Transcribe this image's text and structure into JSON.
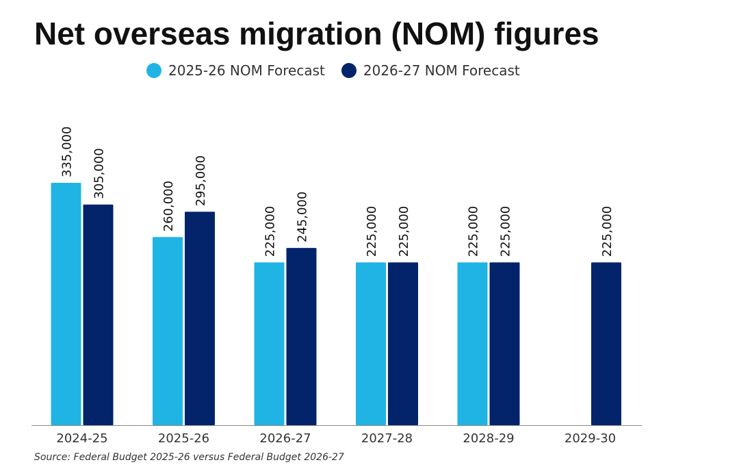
{
  "chart_data": {
    "type": "bar",
    "title": "Net overseas migration (NOM) figures",
    "xlabel": "",
    "ylabel": "",
    "categories": [
      "2024-25",
      "2025-26",
      "2026-27",
      "2027-28",
      "2028-29",
      "2029-30"
    ],
    "series": [
      {
        "name": "2025-26 NOM Forecast",
        "color": "#20B4E4",
        "values": [
          335000,
          260000,
          225000,
          225000,
          225000,
          null
        ],
        "labels": [
          "335,000",
          "260,000",
          "225,000",
          "225,000",
          "225,000",
          null
        ]
      },
      {
        "name": "2026-27 NOM Forecast",
        "color": "#03246B",
        "values": [
          305000,
          295000,
          245000,
          225000,
          225000,
          225000
        ],
        "labels": [
          "305,000",
          "295,000",
          "245,000",
          "225,000",
          "225,000",
          "225,000"
        ]
      }
    ],
    "ylim": [
      0,
      335000
    ],
    "grid": false,
    "legend_position": "top-center"
  },
  "source": "Source: Federal Budget 2025-26 versus Federal Budget 2026-27"
}
